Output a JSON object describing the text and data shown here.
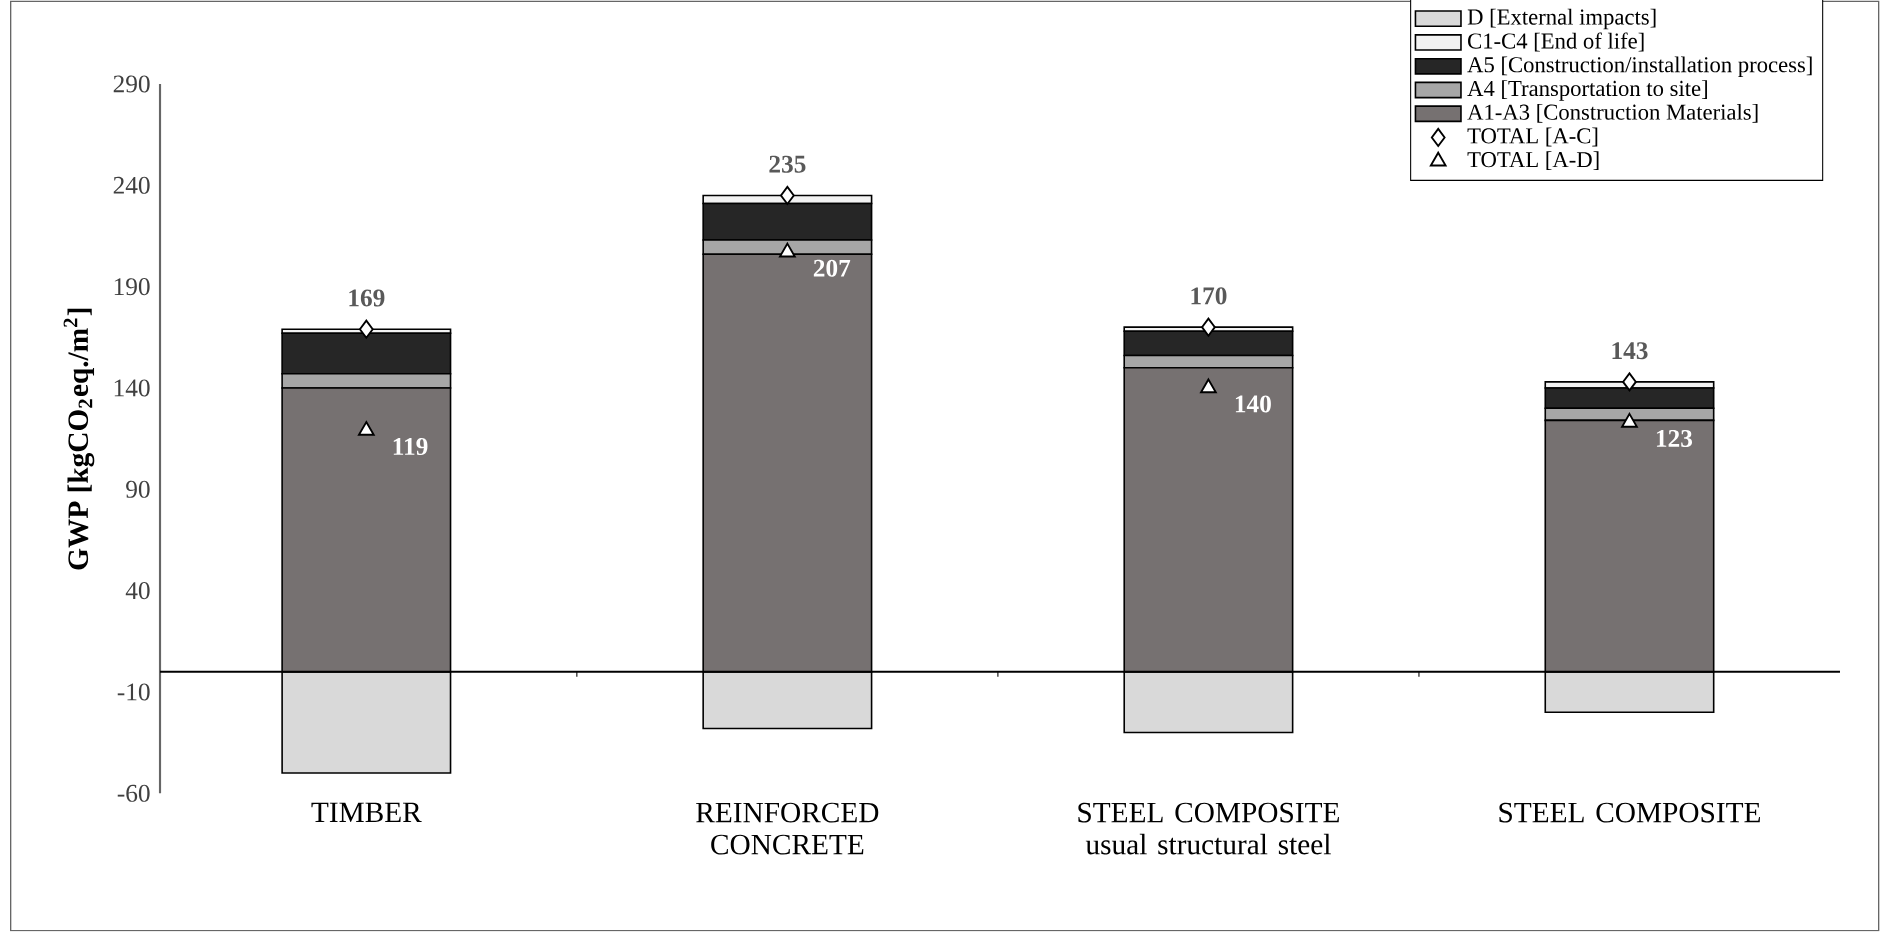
{
  "chart_data": {
    "type": "bar",
    "stacked": true,
    "ylabel": "GWP [kgCO$_{2}$eq./m$^{2}$]",
    "categories": [
      "TIMBER",
      "REINFORCED CONCRETE",
      "STEEL COMPOSITE usual structural steel",
      "STEEL COMPOSITE"
    ],
    "ylim": [
      -60,
      290
    ],
    "yticks": [
      -60,
      -10,
      40,
      90,
      140,
      190,
      240,
      290
    ],
    "legend": "top right",
    "grid": false,
    "series": [
      {
        "name": "A1-A3 [Construction Materials]",
        "color": "#767171",
        "values": [
          140,
          206,
          150,
          124
        ]
      },
      {
        "name": "A4 [Transportation to site]",
        "color": "#a6a6a6",
        "values": [
          7,
          7,
          6,
          6
        ]
      },
      {
        "name": "A5 [Construction/installation process]",
        "color": "#262626",
        "values": [
          20,
          18,
          12,
          10
        ]
      },
      {
        "name": "C1-C4 [End of life]",
        "color": "#f2f2f2",
        "values": [
          2,
          4,
          2,
          3
        ]
      },
      {
        "name": "D [External impacts]",
        "color": "#d9d9d9",
        "values": [
          -50,
          -28,
          -30,
          -20
        ]
      },
      {
        "name": "TOTAL [A-C]",
        "type": "scatter",
        "marker": "diamond",
        "color": "#ffffff",
        "values": [
          169,
          235,
          170,
          143
        ],
        "value_labels": [
          "169",
          "235",
          "170",
          "143"
        ]
      },
      {
        "name": "TOTAL [A-D]",
        "type": "scatter",
        "marker": "triangle",
        "color": "#ffffff",
        "values": [
          119,
          207,
          140,
          123
        ],
        "value_labels": [
          "119",
          "207",
          "140",
          "123"
        ]
      }
    ]
  }
}
